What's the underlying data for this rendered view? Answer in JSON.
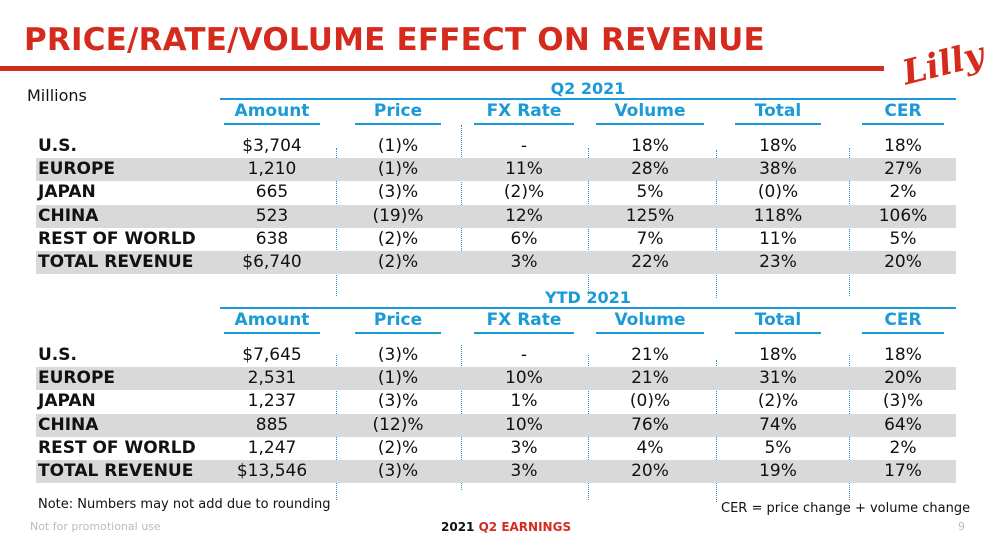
{
  "header": {
    "title": "PRICE/RATE/VOLUME EFFECT ON REVENUE",
    "logo_text": "Lilly",
    "units_label": "Millions"
  },
  "colors": {
    "brand_red": "#d52b1e",
    "accent_blue": "#1a9ad6",
    "row_shade": "#d9d9d9"
  },
  "columns": [
    "Amount",
    "Price",
    "FX Rate",
    "Volume",
    "Total",
    "CER"
  ],
  "q2": {
    "title": "Q2 2021",
    "rows": [
      {
        "label": "U.S.",
        "cells": [
          "$3,704",
          "(1)%",
          "-",
          "18%",
          "18%",
          "18%"
        ]
      },
      {
        "label": "EUROPE",
        "cells": [
          "1,210",
          "(1)%",
          "11%",
          "28%",
          "38%",
          "27%"
        ]
      },
      {
        "label": "JAPAN",
        "cells": [
          "665",
          "(3)%",
          "(2)%",
          "5%",
          "(0)%",
          "2%"
        ]
      },
      {
        "label": "CHINA",
        "cells": [
          "523",
          "(19)%",
          "12%",
          "125%",
          "118%",
          "106%"
        ]
      },
      {
        "label": "REST OF WORLD",
        "cells": [
          "638",
          "(2)%",
          "6%",
          "7%",
          "11%",
          "5%"
        ]
      },
      {
        "label": "TOTAL REVENUE",
        "cells": [
          "$6,740",
          "(2)%",
          "3%",
          "22%",
          "23%",
          "20%"
        ]
      }
    ]
  },
  "ytd": {
    "title": "YTD 2021",
    "rows": [
      {
        "label": "U.S.",
        "cells": [
          "$7,645",
          "(3)%",
          "-",
          "21%",
          "18%",
          "18%"
        ]
      },
      {
        "label": "EUROPE",
        "cells": [
          "2,531",
          "(1)%",
          "10%",
          "21%",
          "31%",
          "20%"
        ]
      },
      {
        "label": "JAPAN",
        "cells": [
          "1,237",
          "(3)%",
          "1%",
          "(0)%",
          "(2)%",
          "(3)%"
        ]
      },
      {
        "label": "CHINA",
        "cells": [
          "885",
          "(12)%",
          "10%",
          "76%",
          "74%",
          "64%"
        ]
      },
      {
        "label": "REST OF WORLD",
        "cells": [
          "1,247",
          "(2)%",
          "3%",
          "4%",
          "5%",
          "2%"
        ]
      },
      {
        "label": "TOTAL REVENUE",
        "cells": [
          "$13,546",
          "(3)%",
          "3%",
          "20%",
          "19%",
          "17%"
        ]
      }
    ]
  },
  "notes": {
    "rounding": "Note: Numbers may not add due to rounding",
    "cer": "CER = price change + volume change",
    "promo": "Not for promotional use",
    "footer_year": "2021",
    "footer_label": "Q2 EARNINGS",
    "page": "9"
  }
}
